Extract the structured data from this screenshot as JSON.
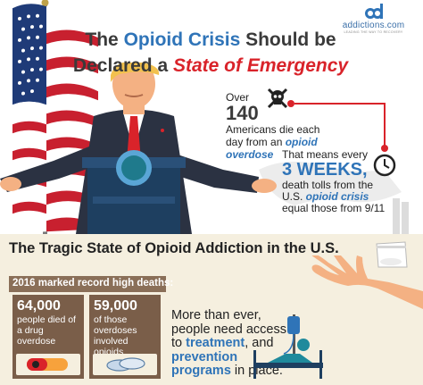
{
  "logo": {
    "site": "addictions.com",
    "tagline": "leading the way to recovery",
    "icon": "ad-logo-icon"
  },
  "header": {
    "line1_pre": "The ",
    "line1_accent": "Opioid Crisis",
    "line1_post": " Should be",
    "line2_pre": "Declared a ",
    "line2_accent": "State of Emergency"
  },
  "stat_deaths": {
    "over": "Over",
    "number": "140",
    "text_pre": "Americans die each day from an ",
    "text_accent": "opioid overdose",
    "icon": "skull-icon"
  },
  "stat_weeks": {
    "lead": "That means every",
    "number": "3 WEEKS,",
    "text_pre": "death tolls from the U.S. ",
    "text_accent": "opioid crisis",
    "text_post": " equal those from 9/11",
    "icon": "clock-icon"
  },
  "section": {
    "title": "The Tragic State of Opioid Addiction in the U.S.",
    "subtitle": "2016 marked record high deaths:"
  },
  "cards": [
    {
      "number": "64,000",
      "desc": "people died of a drug overdose",
      "icon": "pill-icon"
    },
    {
      "number": "59,000",
      "desc": "of those overdoses involved opioids",
      "icon": "pills-icon"
    }
  ],
  "message": {
    "pre": "More than ever, people need access to ",
    "accent1": "treatment",
    "mid": ", and ",
    "accent2": "prevention programs",
    "post": " in place."
  },
  "colors": {
    "accent_blue": "#2f74b8",
    "accent_red": "#d9232a",
    "card_brown": "#7a5e49",
    "section_bg": "#f5efdf"
  }
}
